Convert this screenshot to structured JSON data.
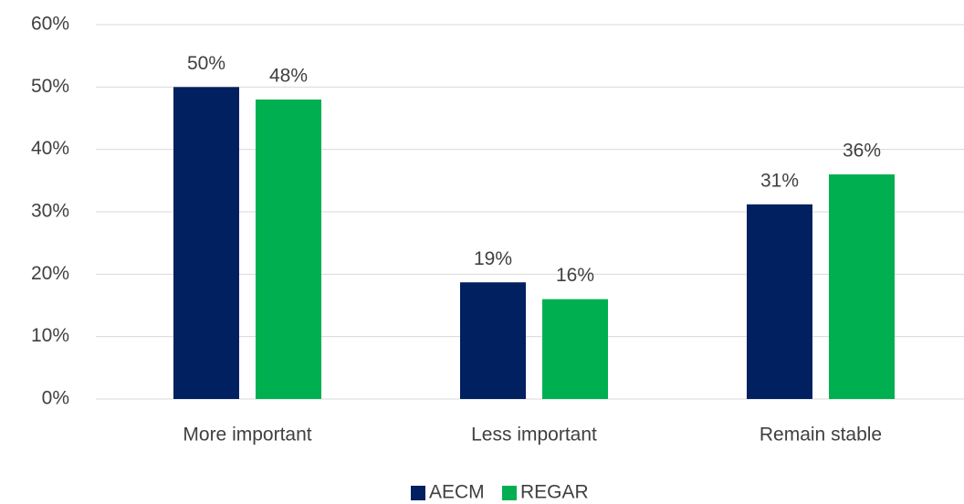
{
  "chart_data": {
    "type": "bar",
    "categories": [
      "More important",
      "Less important",
      "Remain stable"
    ],
    "series": [
      {
        "name": "AECM",
        "color": "#002060",
        "values": [
          50,
          18.7,
          31.2
        ],
        "value_labels": [
          "50%",
          "19%",
          "31%"
        ]
      },
      {
        "name": "REGAR",
        "color": "#00b050",
        "values": [
          48,
          16,
          36
        ],
        "value_labels": [
          "48%",
          "16%",
          "36%"
        ]
      }
    ],
    "ylim": [
      0,
      60
    ],
    "yticks": [
      {
        "value": 0,
        "label": "0%"
      },
      {
        "value": 10,
        "label": "10%"
      },
      {
        "value": 20,
        "label": "20%"
      },
      {
        "value": 30,
        "label": "30%"
      },
      {
        "value": 40,
        "label": "40%"
      },
      {
        "value": 50,
        "label": "50%"
      },
      {
        "value": 60,
        "label": "60%"
      }
    ],
    "grid": true,
    "legend": "bottom"
  }
}
